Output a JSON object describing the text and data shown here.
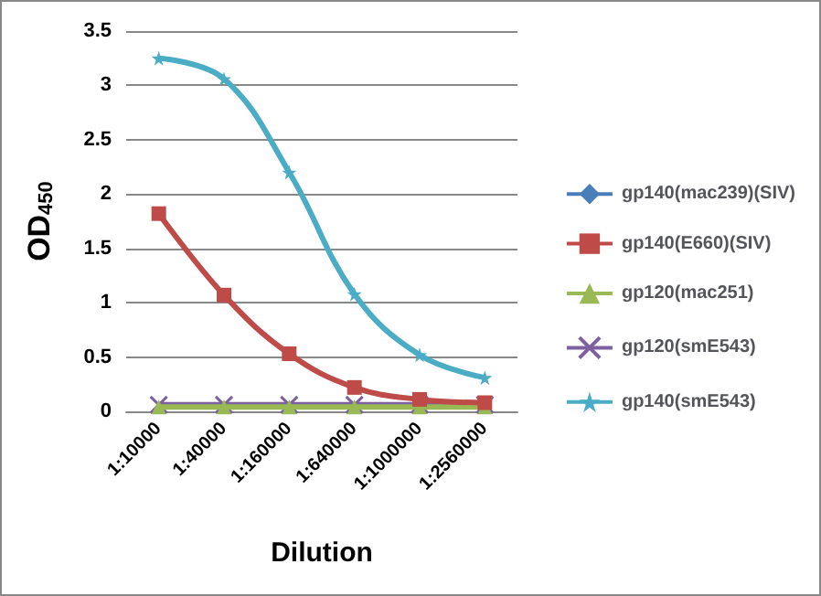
{
  "chart_data": {
    "type": "line",
    "xlabel": "Dilution",
    "ylabel": "OD$_{450}$",
    "categories": [
      "1:10000",
      "1:40000",
      "1:160000",
      "1:640000",
      "1:1000000",
      "1:2560000"
    ],
    "series": [
      {
        "name": "gp140(mac239)(SIV)",
        "color": "#4a7ebb",
        "marker": "diamond",
        "values": [
          null,
          null,
          null,
          null,
          null,
          null
        ]
      },
      {
        "name": "gp140(E660)(SIV)",
        "color": "#be4b48",
        "marker": "square",
        "values": [
          1.82,
          1.07,
          0.53,
          0.22,
          0.11,
          0.08
        ]
      },
      {
        "name": "gp120(mac251)",
        "color": "#98b954",
        "marker": "triangle",
        "values": [
          0.04,
          0.04,
          0.04,
          0.04,
          0.04,
          0.04
        ]
      },
      {
        "name": "gp120(smE543)",
        "color": "#7d60a0",
        "marker": "cross",
        "values": [
          0.06,
          0.06,
          0.06,
          0.06,
          0.06,
          0.06
        ]
      },
      {
        "name": "gp140(smE543)",
        "color": "#4bacc6",
        "marker": "star",
        "values": [
          3.25,
          3.06,
          2.2,
          1.08,
          0.52,
          0.31
        ]
      }
    ],
    "ylim": [
      0,
      3.5
    ],
    "yticks": [
      0,
      0.5,
      1,
      1.5,
      2,
      2.5,
      3,
      3.5
    ],
    "grid": "y",
    "legend": "right",
    "line_style": "solid"
  }
}
